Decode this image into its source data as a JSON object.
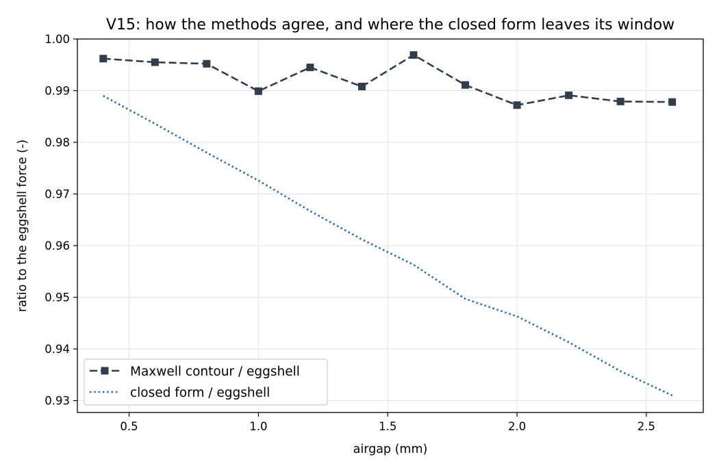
{
  "chart_data": {
    "type": "line",
    "title": "V15: how the methods agree, and where the closed form leaves its window",
    "xlabel": "airgap (mm)",
    "ylabel": "ratio to the eggshell force (-)",
    "xlim": [
      0.3,
      2.72
    ],
    "ylim": [
      0.9277,
      1.0
    ],
    "xticks": [
      0.5,
      1.0,
      1.5,
      2.0,
      2.5
    ],
    "xtick_labels": [
      "0.5",
      "1.0",
      "1.5",
      "2.0",
      "2.5"
    ],
    "yticks": [
      0.93,
      0.94,
      0.95,
      0.96,
      0.97,
      0.98,
      0.99,
      1.0
    ],
    "ytick_labels": [
      "0.93",
      "0.94",
      "0.95",
      "0.96",
      "0.97",
      "0.98",
      "0.99",
      "1.00"
    ],
    "grid": true,
    "legend_position": "lower-left",
    "x": [
      0.4,
      0.6,
      0.8,
      1.0,
      1.2,
      1.4,
      1.6,
      1.8,
      2.0,
      2.2,
      2.4,
      2.6
    ],
    "series": [
      {
        "name": "Maxwell contour / eggshell",
        "color": "#2f3e4a",
        "style": "dashed",
        "marker": "square",
        "values": [
          0.9962,
          0.9955,
          0.9952,
          0.9899,
          0.9945,
          0.9908,
          0.9969,
          0.9911,
          0.9872,
          0.9891,
          0.9879,
          0.9878
        ]
      },
      {
        "name": "closed form / eggshell",
        "color": "#1f6fbf",
        "style": "dotted",
        "marker": "none",
        "values": [
          0.989,
          0.9836,
          0.978,
          0.9726,
          0.9667,
          0.9612,
          0.9563,
          0.9497,
          0.9463,
          0.9413,
          0.9357,
          0.931
        ]
      }
    ]
  }
}
